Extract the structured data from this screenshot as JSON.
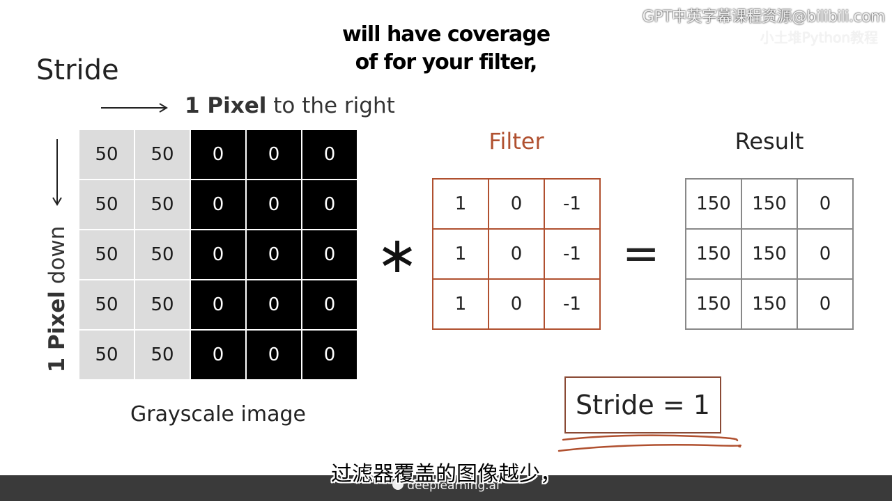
{
  "slide": {
    "title": "Stride"
  },
  "watermark": {
    "main": "GPT中英字幕课程资源@bilibili.com",
    "ghost": "小土堆Python教程"
  },
  "captions": {
    "english_line1": "will have coverage",
    "english_line2": "of for your filter,",
    "chinese": "过滤器覆盖的图像越少，"
  },
  "direction": {
    "right_bold": "1 Pixel",
    "right_rest": " to the right",
    "down_bold": "1 Pixel",
    "down_rest": " down"
  },
  "image": {
    "caption": "Grayscale image",
    "rows": [
      [
        "50",
        "50",
        "0",
        "0",
        "0"
      ],
      [
        "50",
        "50",
        "0",
        "0",
        "0"
      ],
      [
        "50",
        "50",
        "0",
        "0",
        "0"
      ],
      [
        "50",
        "50",
        "0",
        "0",
        "0"
      ],
      [
        "50",
        "50",
        "0",
        "0",
        "0"
      ]
    ],
    "light_color": "#dcdcdc",
    "dark_color": "#000000"
  },
  "operators": {
    "convolution": "∗",
    "equals": "="
  },
  "filter": {
    "heading": "Filter",
    "color": "#b0502f",
    "rows": [
      [
        "1",
        "0",
        "-1"
      ],
      [
        "1",
        "0",
        "-1"
      ],
      [
        "1",
        "0",
        "-1"
      ]
    ]
  },
  "result": {
    "heading": "Result",
    "rows": [
      [
        "150",
        "150",
        "0"
      ],
      [
        "150",
        "150",
        "0"
      ],
      [
        "150",
        "150",
        "0"
      ]
    ]
  },
  "stride_box": {
    "label": "Stride = 1"
  },
  "brand": {
    "icon": "deeplearning-logo-icon",
    "text": "deeplearning.ai"
  }
}
